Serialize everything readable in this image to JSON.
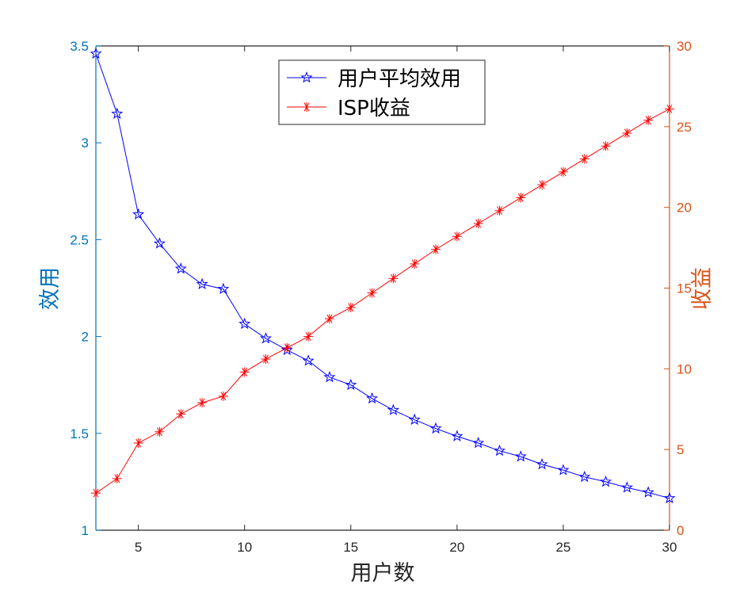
{
  "chart_data": {
    "type": "line",
    "title": "",
    "xlabel": "用户数",
    "ylabel_left": "效用",
    "ylabel_right": "收益",
    "xlim": [
      3,
      30
    ],
    "ylim_left": [
      1,
      3.5
    ],
    "ylim_right": [
      0,
      30
    ],
    "xticks": [
      "5",
      "10",
      "15",
      "20",
      "25",
      "30"
    ],
    "yticks_left": [
      "1",
      "1.5",
      "2",
      "2.5",
      "3",
      "3.5"
    ],
    "yticks_right": [
      "0",
      "5",
      "10",
      "15",
      "20",
      "25",
      "30"
    ],
    "grid": false,
    "legend_position": "top-center",
    "x": [
      3,
      4,
      5,
      6,
      7,
      8,
      9,
      10,
      11,
      12,
      13,
      14,
      15,
      16,
      17,
      18,
      19,
      20,
      21,
      22,
      23,
      24,
      25,
      26,
      27,
      28,
      29,
      30
    ],
    "series": [
      {
        "name": "用户平均效用",
        "axis": "left",
        "color": "#0000FF",
        "marker": "pentagram",
        "values": [
          3.46,
          3.15,
          2.63,
          2.48,
          2.35,
          2.27,
          2.245,
          2.065,
          1.99,
          1.93,
          1.875,
          1.79,
          1.75,
          1.68,
          1.62,
          1.57,
          1.525,
          1.485,
          1.45,
          1.41,
          1.38,
          1.34,
          1.31,
          1.275,
          1.25,
          1.22,
          1.195,
          1.165
        ]
      },
      {
        "name": "ISP收益",
        "axis": "right",
        "color": "#FF0000",
        "marker": "asterisk",
        "values": [
          2.3,
          3.2,
          5.4,
          6.1,
          7.2,
          7.9,
          8.3,
          9.8,
          10.6,
          11.3,
          12.0,
          13.1,
          13.8,
          14.7,
          15.6,
          16.5,
          17.4,
          18.2,
          19.0,
          19.8,
          20.6,
          21.4,
          22.2,
          23.0,
          23.8,
          24.6,
          25.4,
          26.1
        ]
      }
    ]
  },
  "colors": {
    "left_axis": "#0072BD",
    "right_axis": "#D95319",
    "x_axis": "#262626"
  }
}
